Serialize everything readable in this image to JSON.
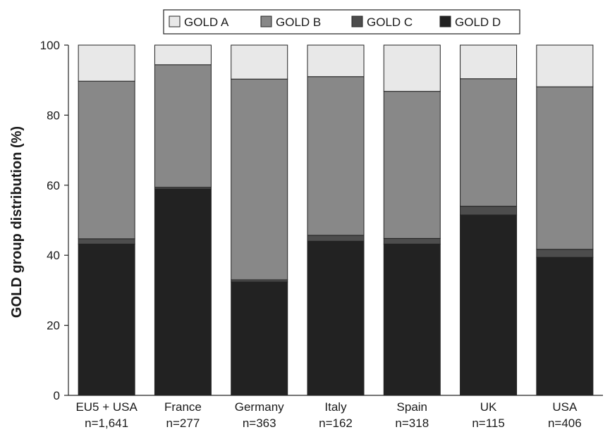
{
  "chart_data": {
    "type": "bar",
    "stacked": true,
    "categories": [
      "EU5 + USA",
      "France",
      "Germany",
      "Italy",
      "Spain",
      "UK",
      "USA"
    ],
    "category_counts": [
      "n=1,641",
      "n=277",
      "n=363",
      "n=162",
      "n=318",
      "n=115",
      "n=406"
    ],
    "series": [
      {
        "name": "GOLD A",
        "color": "#e8e8e8",
        "values": [
          10.3,
          5.6,
          9.7,
          9.0,
          13.2,
          9.6,
          11.9
        ]
      },
      {
        "name": "GOLD B",
        "color": "#888888",
        "values": [
          45.0,
          35.0,
          57.3,
          45.3,
          42.0,
          36.4,
          46.4
        ]
      },
      {
        "name": "GOLD C",
        "color": "#4d4d4d",
        "values": [
          1.5,
          0.5,
          0.6,
          1.7,
          1.6,
          2.5,
          2.3
        ]
      },
      {
        "name": "GOLD D",
        "color": "#222222",
        "values": [
          43.2,
          58.9,
          32.4,
          44.0,
          43.2,
          51.5,
          39.4
        ]
      }
    ],
    "stack_order_bottom_to_top": [
      "GOLD D",
      "GOLD C",
      "GOLD B",
      "GOLD A"
    ],
    "title": "",
    "xlabel": "",
    "ylabel": "GOLD group distribution (%)",
    "ylim": [
      0,
      100
    ],
    "yticks": [
      "0",
      "20",
      "40",
      "60",
      "80",
      "100"
    ],
    "grid": false,
    "legend_position": "top"
  }
}
